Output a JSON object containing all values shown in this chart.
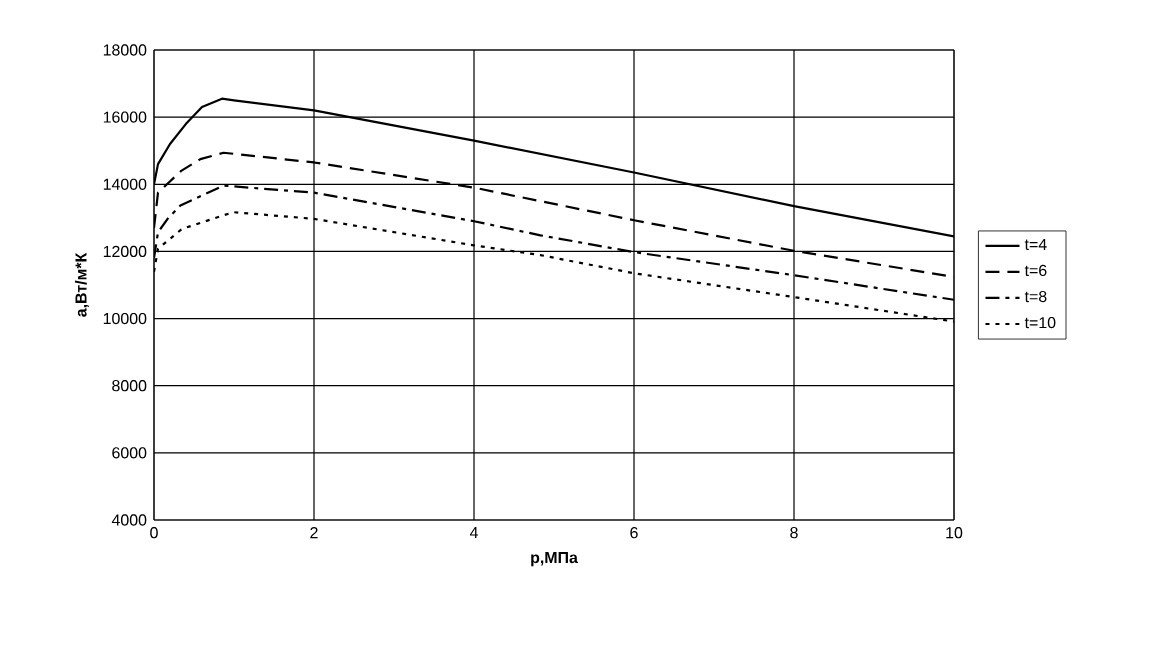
{
  "chart_data": {
    "type": "line",
    "xlabel": "p,МПа",
    "ylabel": "a,Вт/м*К",
    "xlim": [
      0,
      10
    ],
    "ylim": [
      4000,
      18000
    ],
    "xticks": [
      0,
      2,
      4,
      6,
      8,
      10
    ],
    "yticks": [
      4000,
      6000,
      8000,
      10000,
      12000,
      14000,
      16000,
      18000
    ],
    "grid": true,
    "legend": "right",
    "marker": "none",
    "series": [
      {
        "name": "t=4",
        "color": "#000000",
        "line_style": "solid",
        "x": [
          0,
          0.05,
          0.2,
          0.4,
          0.6,
          0.85,
          1,
          2,
          4,
          6,
          8,
          10
        ],
        "values": [
          14000,
          14600,
          15200,
          15800,
          16300,
          16550,
          16500,
          16200,
          15300,
          14350,
          13350,
          12450
        ]
      },
      {
        "name": "t=6",
        "color": "#000000",
        "line_style": "dashed",
        "x": [
          0,
          0.05,
          0.34,
          0.58,
          0.87,
          2,
          4,
          6,
          8,
          10
        ],
        "values": [
          12700,
          13750,
          14400,
          14750,
          14940,
          14650,
          13900,
          12930,
          12020,
          11240
        ]
      },
      {
        "name": "t=8",
        "color": "#000000",
        "line_style": "dashdotted",
        "x": [
          0,
          0.05,
          0.17,
          0.33,
          0.87,
          2,
          4,
          4.83,
          6,
          8,
          10
        ],
        "values": [
          11800,
          12570,
          12970,
          13370,
          13960,
          13750,
          12900,
          12480,
          11980,
          11290,
          10560
        ]
      },
      {
        "name": "t=10",
        "color": "#000000",
        "line_style": "dotted",
        "x": [
          0,
          0.05,
          0.35,
          0.99,
          2,
          4,
          4.83,
          6,
          8,
          10
        ],
        "values": [
          11390,
          12080,
          12670,
          13170,
          12970,
          12180,
          11890,
          11350,
          10640,
          9910
        ]
      }
    ]
  }
}
